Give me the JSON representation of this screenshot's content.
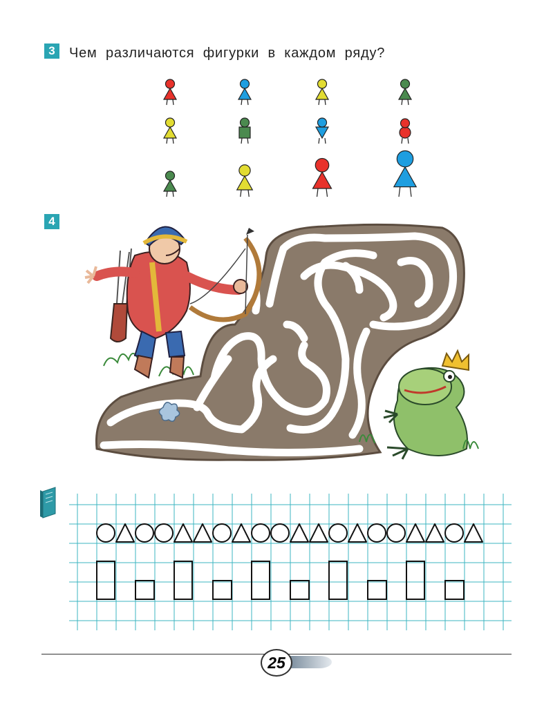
{
  "colors": {
    "accent": "#2aa5b3",
    "red": "#e8322b",
    "blue": "#1e9ee0",
    "yellow": "#e2dc32",
    "green": "#4b8a4f",
    "grid": "#3bb4c1"
  },
  "task3": {
    "number": "3",
    "question": "Чем различаются фигурки в каждом ряду?",
    "rows": [
      [
        {
          "head": "circle",
          "body": "triangle",
          "headColor": "red",
          "bodyColor": "red",
          "size": "small"
        },
        {
          "head": "circle",
          "body": "triangle",
          "headColor": "blue",
          "bodyColor": "blue",
          "size": "small"
        },
        {
          "head": "circle",
          "body": "triangle",
          "headColor": "yellow",
          "bodyColor": "yellow",
          "size": "small"
        },
        {
          "head": "circle",
          "body": "triangle",
          "headColor": "green",
          "bodyColor": "green",
          "size": "small"
        }
      ],
      [
        {
          "head": "circle",
          "body": "triangle",
          "headColor": "yellow",
          "bodyColor": "yellow",
          "size": "small"
        },
        {
          "head": "circle",
          "body": "square",
          "headColor": "green",
          "bodyColor": "green",
          "size": "small"
        },
        {
          "head": "circle",
          "body": "inverted-triangle",
          "headColor": "blue",
          "bodyColor": "blue",
          "size": "small"
        },
        {
          "head": "circle",
          "body": "circle",
          "headColor": "red",
          "bodyColor": "red",
          "size": "small"
        }
      ],
      [
        {
          "head": "circle",
          "body": "triangle",
          "headColor": "green",
          "bodyColor": "green",
          "size": "small"
        },
        {
          "head": "circle",
          "body": "triangle",
          "headColor": "yellow",
          "bodyColor": "yellow",
          "size": "medium"
        },
        {
          "head": "circle",
          "body": "triangle",
          "headColor": "red",
          "bodyColor": "red",
          "size": "large"
        },
        {
          "head": "circle",
          "body": "triangle",
          "headColor": "blue",
          "bodyColor": "blue",
          "size": "xlarge"
        }
      ]
    ]
  },
  "task4": {
    "number": "4",
    "illustration": [
      "archer-boy",
      "maze",
      "frog-princess"
    ]
  },
  "copybook": {
    "icon": "notebook-icon",
    "pattern_row": [
      "circle",
      "triangle",
      "circle",
      "circle",
      "triangle",
      "triangle",
      "circle",
      "triangle",
      "circle",
      "circle",
      "triangle",
      "triangle",
      "circle",
      "triangle",
      "circle",
      "circle",
      "triangle",
      "triangle",
      "circle",
      "triangle"
    ],
    "rect_row": [
      "tall",
      "small",
      "tall",
      "small",
      "tall",
      "small",
      "tall",
      "small",
      "tall",
      "small"
    ]
  },
  "page": {
    "number": "25"
  }
}
